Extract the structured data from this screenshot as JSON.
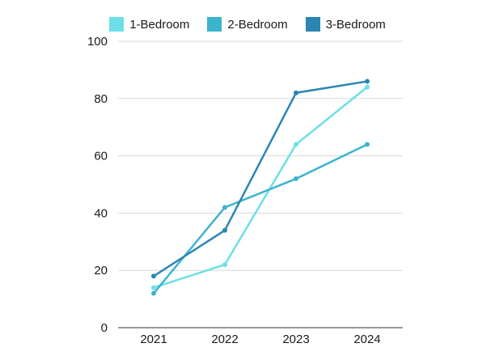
{
  "chart_data": {
    "type": "line",
    "title": "",
    "xlabel": "",
    "ylabel": "",
    "categories": [
      "2021",
      "2022",
      "2023",
      "2024"
    ],
    "ylim": [
      0,
      100
    ],
    "yticks": [
      0,
      20,
      40,
      60,
      80,
      100
    ],
    "grid": true,
    "legend_position": "top-center",
    "series": [
      {
        "name": "1-Bedroom",
        "color": "#6ce0e6",
        "values": [
          14,
          22,
          64,
          84
        ]
      },
      {
        "name": "2-Bedroom",
        "color": "#3db4ce",
        "values": [
          12,
          42,
          52,
          64
        ]
      },
      {
        "name": "3-Bedroom",
        "color": "#2b86b3",
        "values": [
          18,
          34,
          82,
          86
        ]
      }
    ]
  }
}
